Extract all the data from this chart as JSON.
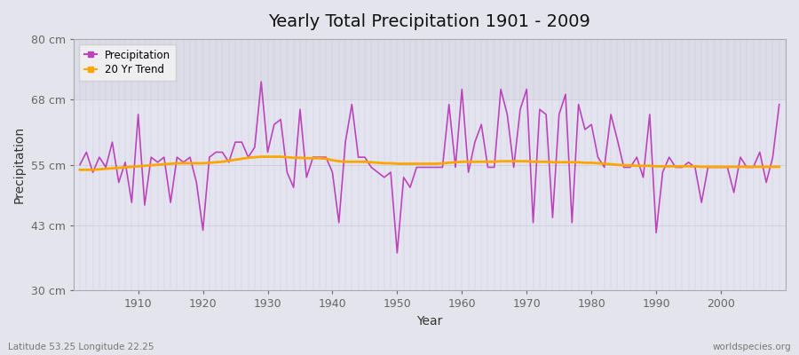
{
  "title": "Yearly Total Precipitation 1901 - 2009",
  "xlabel": "Year",
  "ylabel": "Precipitation",
  "lat_lon_label": "Latitude 53.25 Longitude 22.25",
  "watermark": "worldspecies.org",
  "ylim": [
    30,
    80
  ],
  "yticks": [
    30,
    43,
    55,
    68,
    80
  ],
  "ytick_labels": [
    "30 cm",
    "43 cm",
    "55 cm",
    "68 cm",
    "80 cm"
  ],
  "years": [
    1901,
    1902,
    1903,
    1904,
    1905,
    1906,
    1907,
    1908,
    1909,
    1910,
    1911,
    1912,
    1913,
    1914,
    1915,
    1916,
    1917,
    1918,
    1919,
    1920,
    1921,
    1922,
    1923,
    1924,
    1925,
    1926,
    1927,
    1928,
    1929,
    1930,
    1931,
    1932,
    1933,
    1934,
    1935,
    1936,
    1937,
    1938,
    1939,
    1940,
    1941,
    1942,
    1943,
    1944,
    1945,
    1946,
    1947,
    1948,
    1949,
    1950,
    1951,
    1952,
    1953,
    1954,
    1955,
    1956,
    1957,
    1958,
    1959,
    1960,
    1961,
    1962,
    1963,
    1964,
    1965,
    1966,
    1967,
    1968,
    1969,
    1970,
    1971,
    1972,
    1973,
    1974,
    1975,
    1976,
    1977,
    1978,
    1979,
    1980,
    1981,
    1982,
    1983,
    1984,
    1985,
    1986,
    1987,
    1988,
    1989,
    1990,
    1991,
    1992,
    1993,
    1994,
    1995,
    1996,
    1997,
    1998,
    1999,
    2000,
    2001,
    2002,
    2003,
    2004,
    2005,
    2006,
    2007,
    2008,
    2009
  ],
  "precip": [
    55.0,
    57.5,
    53.5,
    56.5,
    54.5,
    59.5,
    51.5,
    55.5,
    47.5,
    65.0,
    47.0,
    56.5,
    55.5,
    56.5,
    47.5,
    56.5,
    55.5,
    56.5,
    51.5,
    42.0,
    56.5,
    57.5,
    57.5,
    55.5,
    59.5,
    59.5,
    56.5,
    58.5,
    71.5,
    57.5,
    63.0,
    64.0,
    53.5,
    50.5,
    66.0,
    52.5,
    56.5,
    56.5,
    56.5,
    53.5,
    43.5,
    59.5,
    67.0,
    56.5,
    56.5,
    54.5,
    53.5,
    52.5,
    53.5,
    37.5,
    52.5,
    50.5,
    54.5,
    54.5,
    54.5,
    54.5,
    54.5,
    67.0,
    54.5,
    70.0,
    53.5,
    59.5,
    63.0,
    54.5,
    54.5,
    70.0,
    65.0,
    54.5,
    66.0,
    70.0,
    43.5,
    66.0,
    65.0,
    44.5,
    65.0,
    69.0,
    43.5,
    67.0,
    62.0,
    63.0,
    56.5,
    54.5,
    65.0,
    60.0,
    54.5,
    54.5,
    56.5,
    52.5,
    65.0,
    41.5,
    53.5,
    56.5,
    54.5,
    54.5,
    55.5,
    54.5,
    47.5,
    54.5,
    54.5,
    54.5,
    54.5,
    49.5,
    56.5,
    54.5,
    54.5,
    57.5,
    51.5,
    56.5,
    67.0
  ],
  "trend": [
    54.0,
    54.0,
    54.0,
    54.1,
    54.2,
    54.3,
    54.4,
    54.5,
    54.6,
    54.7,
    54.8,
    54.9,
    55.0,
    55.1,
    55.2,
    55.3,
    55.3,
    55.3,
    55.3,
    55.3,
    55.4,
    55.5,
    55.6,
    55.8,
    56.0,
    56.2,
    56.4,
    56.5,
    56.6,
    56.6,
    56.6,
    56.6,
    56.5,
    56.4,
    56.4,
    56.3,
    56.3,
    56.3,
    56.2,
    55.9,
    55.7,
    55.6,
    55.6,
    55.6,
    55.6,
    55.5,
    55.4,
    55.3,
    55.3,
    55.2,
    55.2,
    55.2,
    55.2,
    55.2,
    55.2,
    55.2,
    55.3,
    55.4,
    55.5,
    55.6,
    55.6,
    55.6,
    55.6,
    55.6,
    55.6,
    55.7,
    55.7,
    55.7,
    55.7,
    55.7,
    55.6,
    55.6,
    55.6,
    55.5,
    55.5,
    55.5,
    55.5,
    55.5,
    55.4,
    55.4,
    55.3,
    55.2,
    55.1,
    55.0,
    54.9,
    54.9,
    54.8,
    54.8,
    54.8,
    54.7,
    54.7,
    54.7,
    54.7,
    54.7,
    54.7,
    54.7,
    54.6,
    54.6,
    54.6,
    54.6,
    54.6,
    54.6,
    54.6,
    54.6,
    54.6,
    54.6,
    54.6,
    54.6,
    54.6
  ],
  "precip_color": "#BB44BB",
  "trend_color": "#FFA500",
  "fig_bg_color": "#E4E4EC",
  "plot_bg_upper": "#DCDCE8",
  "plot_bg_lower": "#E4E4F0",
  "grid_color": "#C8C8D8",
  "legend_bg": "#F5F5F5",
  "spine_color": "#AAAAAA"
}
